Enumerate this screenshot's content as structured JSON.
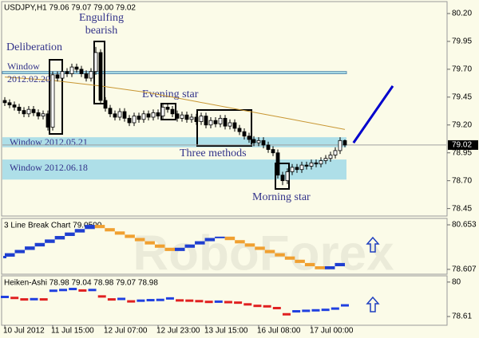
{
  "chart_data": [
    {
      "type": "candlestick",
      "title": "USDJPY,H1 79.06 79.07 79.00 79.02",
      "open": [
        79.42,
        79.4,
        79.38,
        79.36,
        79.33,
        79.3,
        79.34,
        79.31,
        79.28,
        79.3,
        79.18,
        79.65,
        79.62,
        79.68,
        79.66,
        79.72,
        79.7,
        79.66,
        79.62,
        79.68,
        79.85,
        79.42,
        79.35,
        79.3,
        79.27,
        79.32,
        79.26,
        79.22,
        79.28,
        79.25,
        79.3,
        79.27,
        79.31,
        79.28,
        79.36,
        79.34,
        79.3,
        79.26,
        79.29,
        79.25,
        79.27,
        79.23,
        79.28,
        79.2,
        79.24,
        79.21,
        79.26,
        79.19,
        79.22,
        79.17,
        79.14,
        79.1,
        79.07,
        79.04,
        79.06,
        79.02,
        78.98,
        78.95,
        78.75,
        78.7,
        78.78,
        78.82,
        78.8,
        78.84,
        78.83,
        78.86,
        78.85,
        78.88,
        78.9,
        78.93,
        78.97,
        79.06
      ],
      "high": [
        79.45,
        79.43,
        79.41,
        79.39,
        79.36,
        79.37,
        79.37,
        79.34,
        79.33,
        79.33,
        79.68,
        79.68,
        79.71,
        79.71,
        79.75,
        79.75,
        79.73,
        79.69,
        79.71,
        79.9,
        79.88,
        79.45,
        79.38,
        79.33,
        79.35,
        79.35,
        79.29,
        79.31,
        79.31,
        79.33,
        79.33,
        79.34,
        79.34,
        79.39,
        79.39,
        79.37,
        79.33,
        79.32,
        79.32,
        79.3,
        79.3,
        79.31,
        79.31,
        79.27,
        79.27,
        79.29,
        79.29,
        79.25,
        79.25,
        79.2,
        79.17,
        79.13,
        79.1,
        79.09,
        79.09,
        79.05,
        79.01,
        78.98,
        78.78,
        78.81,
        78.85,
        78.85,
        78.87,
        78.87,
        78.89,
        78.89,
        78.91,
        78.93,
        78.96,
        79.0,
        79.09,
        79.07
      ],
      "low": [
        79.37,
        79.35,
        79.33,
        79.3,
        79.27,
        79.27,
        79.28,
        79.25,
        79.25,
        79.15,
        79.15,
        79.59,
        79.59,
        79.63,
        79.63,
        79.67,
        79.63,
        79.59,
        79.59,
        79.65,
        79.39,
        79.32,
        79.27,
        79.24,
        79.24,
        79.23,
        79.19,
        79.19,
        79.22,
        79.22,
        79.24,
        79.24,
        79.25,
        79.25,
        79.31,
        79.27,
        79.23,
        79.23,
        79.22,
        79.22,
        79.2,
        79.2,
        79.17,
        79.17,
        79.18,
        79.18,
        79.16,
        79.16,
        79.14,
        79.11,
        79.07,
        79.04,
        79.01,
        79.01,
        78.99,
        78.95,
        78.92,
        78.72,
        78.66,
        78.67,
        78.75,
        78.77,
        78.77,
        78.8,
        78.8,
        78.82,
        78.82,
        78.85,
        78.87,
        78.9,
        78.94,
        79.0
      ],
      "close": [
        79.4,
        79.38,
        79.36,
        79.33,
        79.3,
        79.34,
        79.31,
        79.28,
        79.3,
        79.18,
        79.65,
        79.62,
        79.68,
        79.66,
        79.72,
        79.7,
        79.66,
        79.62,
        79.68,
        79.85,
        79.42,
        79.35,
        79.3,
        79.27,
        79.32,
        79.26,
        79.22,
        79.28,
        79.25,
        79.3,
        79.27,
        79.31,
        79.28,
        79.36,
        79.34,
        79.3,
        79.26,
        79.29,
        79.25,
        79.27,
        79.23,
        79.28,
        79.2,
        79.24,
        79.21,
        79.26,
        79.19,
        79.22,
        79.17,
        79.14,
        79.1,
        79.07,
        79.04,
        79.06,
        79.02,
        78.98,
        78.95,
        78.75,
        78.7,
        78.78,
        78.82,
        78.8,
        78.84,
        78.83,
        78.86,
        78.85,
        78.88,
        78.9,
        78.93,
        78.97,
        79.06,
        79.02
      ],
      "up_color": "#ffffff",
      "down_color": "#000000",
      "ylim": [
        78.39,
        80.3
      ],
      "yticks": [
        {
          "value": 80.2,
          "label": "80.20"
        },
        79.95,
        {
          "value": 79.7,
          "label": "79.70"
        },
        79.45,
        {
          "value": 79.2,
          "label": "79.20"
        },
        78.95,
        {
          "value": 78.7,
          "label": "78.70"
        },
        78.45
      ],
      "xticks": [
        {
          "value": 0,
          "label": "10 Jul 2012"
        },
        {
          "value": 10,
          "label": "11 Jul 15:00"
        },
        {
          "value": 21,
          "label": "12 Jul 07:00"
        },
        {
          "value": 32,
          "label": "12 Jul 23:00"
        },
        {
          "value": 42,
          "label": "13 Jul 15:00"
        },
        {
          "value": 53,
          "label": "16 Jul 08:00"
        },
        {
          "value": 64,
          "label": "17 Jul 00:00"
        }
      ],
      "last_price": 79.02,
      "moving_average": {
        "color": "#c89632",
        "x": [
          0,
          10,
          20,
          30,
          40,
          50,
          60,
          71
        ],
        "values": [
          79.63,
          79.6,
          79.55,
          79.49,
          79.41,
          79.33,
          79.25,
          79.16
        ]
      },
      "trend_line": {
        "color": "#0000cc",
        "x": [
          72.8,
          81
        ],
        "values": [
          79.04,
          79.55
        ]
      },
      "zones": [
        {
          "label": "Window 2012.02.20",
          "range": [
            79.66,
            79.68
          ]
        },
        {
          "label": "Window 2012.05.21",
          "range": [
            79.0,
            79.09
          ]
        },
        {
          "label": "Window 2012.06.18",
          "range": [
            78.71,
            78.89
          ]
        }
      ],
      "zone_color": "#aedfe8",
      "annotations": [
        "Deliberation",
        "Engulfing",
        "bearish",
        "Evening star",
        "Three methods",
        "Morning star"
      ]
    },
    {
      "type": "line-break",
      "title": "3 Line Break Chart 79.0500",
      "values": [
        79.19,
        79.35,
        79.5,
        79.66,
        79.82,
        79.98,
        80.14,
        80.3,
        80.46,
        80.65,
        80.5,
        80.35,
        80.2,
        80.05,
        79.9,
        79.75,
        79.6,
        79.45,
        79.6,
        79.75,
        79.9,
        80.05,
        80.11,
        79.95,
        79.8,
        79.65,
        79.5,
        79.35,
        79.2,
        79.05,
        78.9,
        78.75,
        78.61,
        78.75,
        78.9
      ],
      "up_color": "#1f3fd0",
      "down_color": "#f0a030",
      "ylim": [
        78.42,
        80.91
      ],
      "yticks": [
        80.653,
        78.607
      ]
    },
    {
      "type": "heiken-ashi",
      "title": "Heiken-Ashi 78.98 79.04 78.98 79.07 78.98",
      "values": [
        79.4,
        79.36,
        79.3,
        79.31,
        79.3,
        79.65,
        79.68,
        79.72,
        79.66,
        79.68,
        79.42,
        79.3,
        79.32,
        79.22,
        79.25,
        79.27,
        79.28,
        79.34,
        79.26,
        79.25,
        79.23,
        79.2,
        79.21,
        79.19,
        79.17,
        79.1,
        79.04,
        79.02,
        78.95,
        78.7,
        78.82,
        78.84,
        78.86,
        78.88,
        78.93,
        79.06
      ],
      "up_color": "#2040e0",
      "down_color": "#e02020",
      "ylim": [
        78.29,
        80.22
      ],
      "yticks": [
        80,
        78.61
      ]
    }
  ],
  "watermark": "RoboForex"
}
